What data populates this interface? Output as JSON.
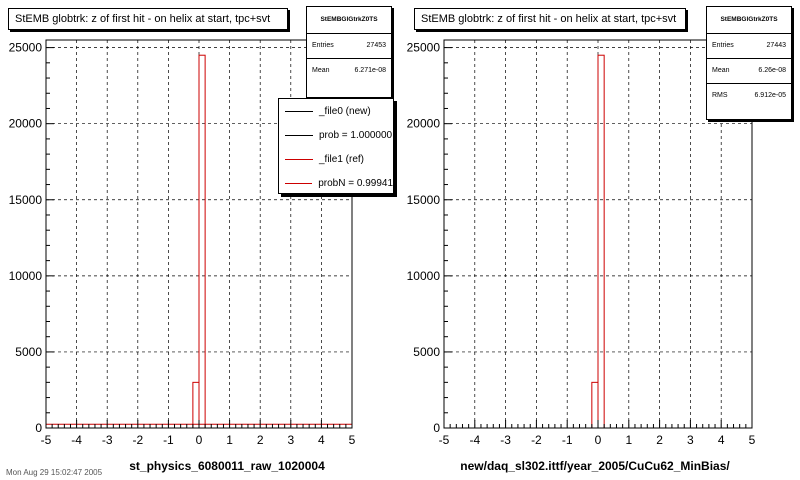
{
  "chart_data": [
    {
      "type": "bar",
      "title": "StEMB globtrk: z of first hit - on helix at start, tpc+svt",
      "xlabel": "st_physics_6080011_raw_1020004",
      "ylabel": "",
      "xlim": [
        -5,
        5
      ],
      "ylim": [
        0,
        25500
      ],
      "x_ticks": [
        "-5",
        "-4",
        "-3",
        "-2",
        "-1",
        "0",
        "1",
        "2",
        "3",
        "4",
        "5"
      ],
      "y_ticks": [
        "0",
        "5000",
        "10000",
        "15000",
        "20000",
        "25000"
      ],
      "grid": true,
      "bin_width": 0.2,
      "bins": [
        {
          "x0": -0.2,
          "x1": 0.0,
          "value": 3000
        },
        {
          "x0": 0.0,
          "x1": 0.2,
          "value": 24500
        }
      ],
      "baseline_value": 250,
      "series": [
        {
          "name": "_file0 (new)",
          "color": "#000000"
        },
        {
          "name": "_file1 (ref)",
          "color": "#cc0000"
        }
      ],
      "stats": {
        "name": "StEMBGlGtrkZ0TS",
        "entries_label": "Entries",
        "entries": "27453",
        "mean_label": "Mean",
        "mean": "6.271e-08"
      },
      "legend": {
        "placement": "top-right",
        "entries": [
          {
            "label": "_file0 (new)",
            "color": "#000000"
          },
          {
            "label": "prob = 1.000000",
            "color": "#000000"
          },
          {
            "label": "_file1 (ref)",
            "color": "#cc0000"
          },
          {
            "label": "probN = 0.99941",
            "color": "#cc0000"
          }
        ]
      }
    },
    {
      "type": "bar",
      "title": "StEMB globtrk: z of first hit - on helix at start, tpc+svt",
      "xlabel": "new/daq_sl302.ittf/year_2005/CuCu62_MinBias/",
      "ylabel": "",
      "xlim": [
        -5,
        5
      ],
      "ylim": [
        0,
        25500
      ],
      "x_ticks": [
        "-5",
        "-4",
        "-3",
        "-2",
        "-1",
        "0",
        "1",
        "2",
        "3",
        "4",
        "5"
      ],
      "y_ticks": [
        "0",
        "5000",
        "10000",
        "15000",
        "20000",
        "25000"
      ],
      "grid": true,
      "bin_width": 0.2,
      "bins": [
        {
          "x0": -0.2,
          "x1": 0.0,
          "value": 3000
        },
        {
          "x0": 0.0,
          "x1": 0.2,
          "value": 24500
        }
      ],
      "series": [
        {
          "name": "",
          "color": "#cc0000"
        }
      ],
      "stats": {
        "name": "StEMBGlGtrkZ0TS",
        "entries_label": "Entries",
        "entries": "27443",
        "mean_label": "Mean",
        "mean": "6.26e-08",
        "rms_label": "RMS",
        "rms": "6.912e-05"
      }
    }
  ],
  "footer": "Mon Aug 29 15:02:47 2005"
}
